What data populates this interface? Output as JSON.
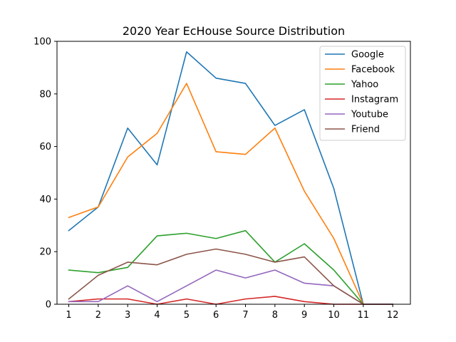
{
  "chart_data": {
    "type": "line",
    "title": "2020 Year EcHouse Source Distribution",
    "xlabel": "",
    "ylabel": "",
    "x": [
      1,
      2,
      3,
      4,
      5,
      6,
      7,
      8,
      9,
      10,
      11,
      12
    ],
    "xticks": [
      "1",
      "2",
      "3",
      "4",
      "5",
      "6",
      "7",
      "8",
      "9",
      "10",
      "11",
      "12"
    ],
    "yticks": [
      "0",
      "20",
      "40",
      "60",
      "80",
      "100"
    ],
    "ylim": [
      0,
      100
    ],
    "xlim": [
      0.6,
      12.6
    ],
    "grid": false,
    "legend_position": "upper right",
    "series": [
      {
        "name": "Google",
        "color": "#1f77b4",
        "values": [
          28,
          37,
          67,
          53,
          96,
          86,
          84,
          68,
          74,
          44,
          0,
          0
        ]
      },
      {
        "name": "Facebook",
        "color": "#ff7f0e",
        "values": [
          33,
          37,
          56,
          65,
          84,
          58,
          57,
          67,
          43,
          25,
          0,
          0
        ]
      },
      {
        "name": "Yahoo",
        "color": "#2ca02c",
        "values": [
          13,
          12,
          14,
          26,
          27,
          25,
          28,
          16,
          23,
          13,
          0,
          0
        ]
      },
      {
        "name": "Instagram",
        "color": "#d62728",
        "values": [
          1,
          2,
          2,
          0,
          2,
          0,
          2,
          3,
          1,
          0,
          0,
          0
        ]
      },
      {
        "name": "Youtube",
        "color": "#9467bd",
        "values": [
          1,
          1,
          7,
          1,
          7,
          13,
          10,
          13,
          8,
          7,
          0,
          0
        ]
      },
      {
        "name": "Friend",
        "color": "#8c564b",
        "values": [
          2,
          11,
          16,
          15,
          19,
          21,
          19,
          16,
          18,
          7,
          0,
          0
        ]
      }
    ]
  }
}
